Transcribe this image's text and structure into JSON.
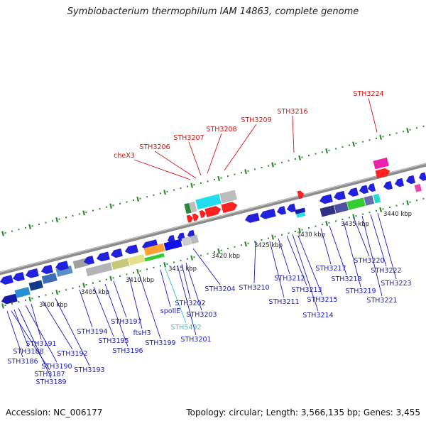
{
  "title": "Symbiobacterium thermophilum IAM 14863, complete genome",
  "footer": {
    "accession": "Accession: NC_006177",
    "summary": "Topology: circular; Length: 3,566,135 bp; Genes: 3,455"
  },
  "colors": {
    "backbone": "#8c8c8c",
    "tick": "#2f8a2f",
    "upper_label": "#dd1111",
    "lower_label": "#1a1acc",
    "special_label": "#33bbdd"
  },
  "scale_labels": [
    "3400 kbp",
    "3405 kbp",
    "3410 kbp",
    "3415 kbp",
    "3420 kbp",
    "3425 kbp",
    "3430 kbp",
    "3435 kbp",
    "3440 kbp"
  ],
  "upper_genes": [
    "cheX3",
    "STH3206",
    "STH3207",
    "STH3208",
    "STH3209",
    "STH3216",
    "STH3224"
  ],
  "lower_genes": [
    "STH3186",
    "STH3187",
    "STH3188",
    "STH3189",
    "STH3190",
    "STH3191",
    "STH3192",
    "STH3193",
    "STH3194",
    "STH3195",
    "STH3196",
    "STH3197",
    "ftsH3",
    "STH3199",
    "spoIIE",
    "STH5492",
    "STH3201",
    "STH3202",
    "STH3203",
    "STH3204",
    "STH3210",
    "STH3211",
    "STH3212",
    "STH3213",
    "STH3214",
    "STH3215",
    "STH3217",
    "STH3218",
    "STH3219",
    "STH3220",
    "STH3221",
    "STH3222",
    "STH3223"
  ]
}
